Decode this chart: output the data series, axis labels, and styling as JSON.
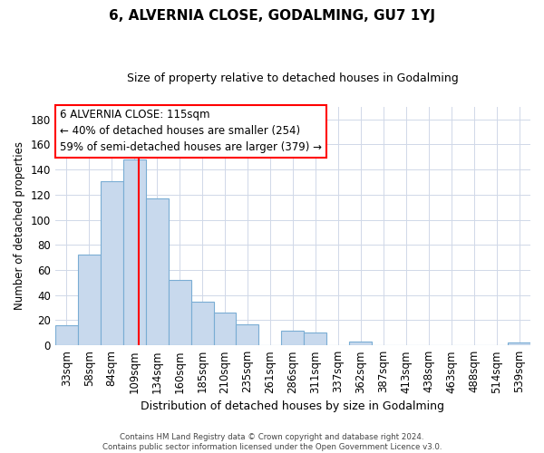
{
  "title": "6, ALVERNIA CLOSE, GODALMING, GU7 1YJ",
  "subtitle": "Size of property relative to detached houses in Godalming",
  "xlabel": "Distribution of detached houses by size in Godalming",
  "ylabel": "Number of detached properties",
  "categories": [
    "33sqm",
    "58sqm",
    "84sqm",
    "109sqm",
    "134sqm",
    "160sqm",
    "185sqm",
    "210sqm",
    "235sqm",
    "261sqm",
    "286sqm",
    "311sqm",
    "337sqm",
    "362sqm",
    "387sqm",
    "413sqm",
    "438sqm",
    "463sqm",
    "488sqm",
    "514sqm",
    "539sqm"
  ],
  "values": [
    16,
    72,
    131,
    148,
    117,
    52,
    35,
    26,
    17,
    0,
    12,
    10,
    0,
    3,
    0,
    0,
    0,
    0,
    0,
    0,
    2
  ],
  "bar_color": "#c8d9ed",
  "bar_edge_color": "#7aadd4",
  "redline_x": 3.2,
  "ylim": [
    0,
    190
  ],
  "yticks": [
    0,
    20,
    40,
    60,
    80,
    100,
    120,
    140,
    160,
    180
  ],
  "annotation_line1": "6 ALVERNIA CLOSE: 115sqm",
  "annotation_line2": "← 40% of detached houses are smaller (254)",
  "annotation_line3": "59% of semi-detached houses are larger (379) →",
  "footer_line1": "Contains HM Land Registry data © Crown copyright and database right 2024.",
  "footer_line2": "Contains public sector information licensed under the Open Government Licence v3.0.",
  "background_color": "#ffffff",
  "grid_color": "#d0d8e8"
}
